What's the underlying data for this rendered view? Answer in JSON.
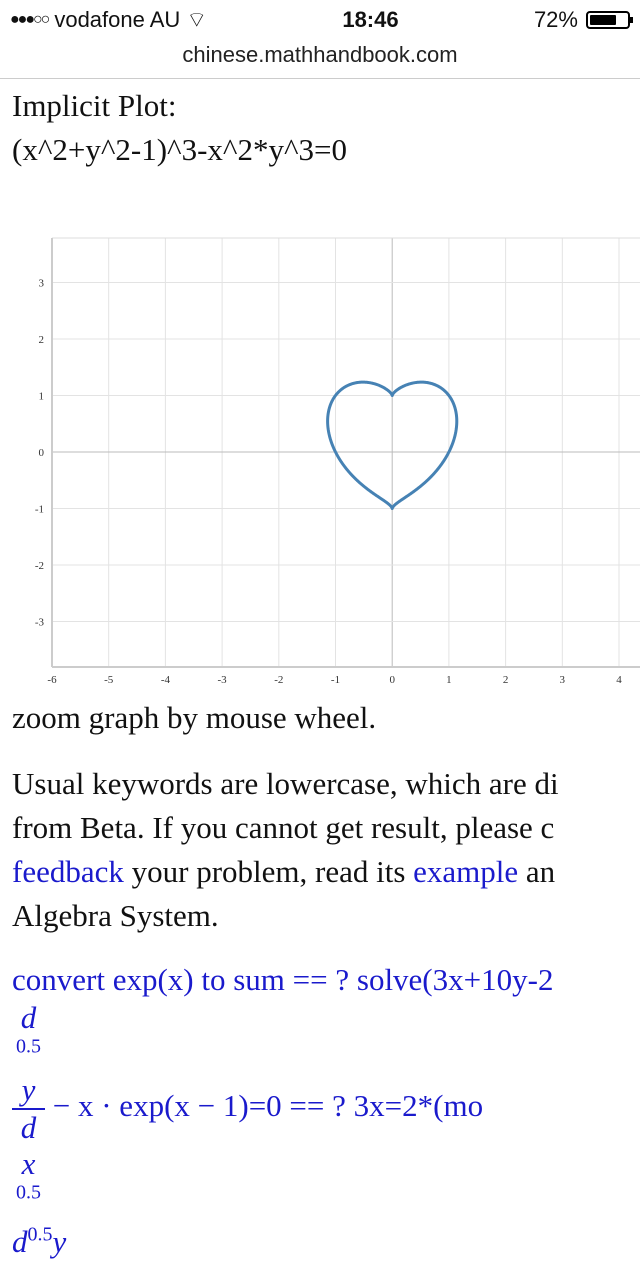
{
  "status_bar": {
    "signal": "●●●○○",
    "carrier": "vodafone AU",
    "wifi_icon": "wifi-icon",
    "time": "18:46",
    "battery": "72%",
    "battery_level": 0.72
  },
  "browser": {
    "url": "chinese.mathhandbook.com"
  },
  "heading": {
    "line1": "Implicit Plot:",
    "line2": "(x^2+y^2-1)^3-x^2*y^3=0"
  },
  "chart_data": {
    "type": "line",
    "equation": "(x^2+y^2-1)^3-x^2*y^3=0",
    "xlim": [
      -6,
      4.4
    ],
    "ylim": [
      -3.8,
      3.8
    ],
    "x_ticks": [
      "-6",
      "-5",
      "-4",
      "-3",
      "-2",
      "-1",
      "0",
      "1",
      "2",
      "3",
      "4"
    ],
    "y_ticks": [
      "3",
      "2",
      "1",
      "0",
      "-1",
      "-2",
      "-3"
    ],
    "grid": true,
    "line_color": "#4682b4"
  },
  "hint": "zoom graph by mouse wheel.",
  "para": {
    "l1": "Usual keywords are lowercase, which are di",
    "l2": "from Beta. If you cannot get result, please c",
    "l3_link": "feedback",
    "l3_text": " your problem, read its ",
    "l3_link2": "example",
    "l3_tail": " an",
    "l4": "Algebra System."
  },
  "examples": {
    "e1": "convert exp(x) to sum == ? solve(3x+10y-2",
    "e2_num": "y",
    "e2_den": "x",
    "e2_rest": " − x · exp(x − 1)=0 == ? 3x=2*(mo",
    "exp": "0.5",
    "d": "d",
    "e3_rest": "y"
  }
}
